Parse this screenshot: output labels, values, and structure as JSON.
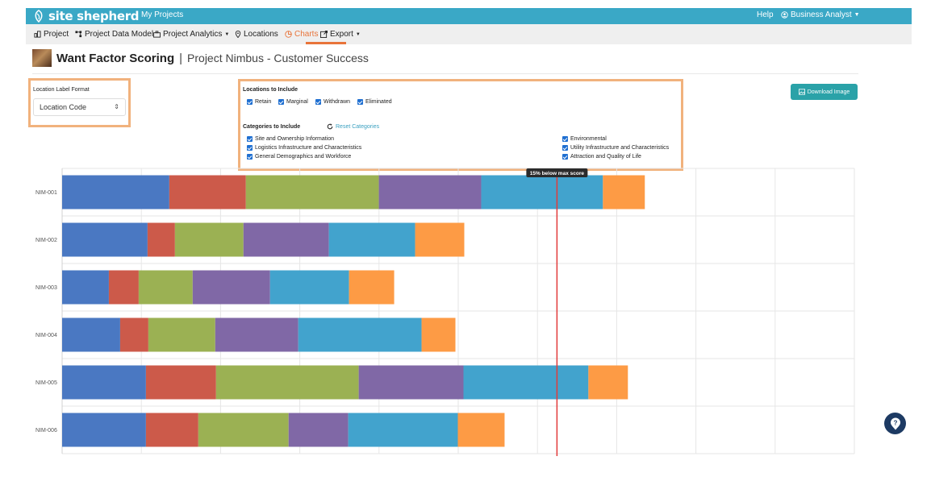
{
  "brand": {
    "name": "site shepherd",
    "color": "#3aa8c6"
  },
  "topbar": {
    "my_projects": "My Projects",
    "help": "Help",
    "user": "Business Analyst"
  },
  "nav": {
    "project": "Project",
    "data_model": "Project Data Model",
    "analytics": "Project Analytics",
    "locations": "Locations",
    "charts": "Charts",
    "export": "Export"
  },
  "page": {
    "title": "Want Factor Scoring",
    "separator": "|",
    "subtitle": "Project Nimbus - Customer Success"
  },
  "label_format": {
    "label": "Location Label Format",
    "value": "Location Code"
  },
  "locations": {
    "heading": "Locations to Include",
    "items": [
      {
        "label": "Retain",
        "checked": true
      },
      {
        "label": "Marginal",
        "checked": true
      },
      {
        "label": "Withdrawn",
        "checked": true
      },
      {
        "label": "Eliminated",
        "checked": true
      }
    ]
  },
  "categories": {
    "heading": "Categories to Include",
    "reset_label": "Reset Categories",
    "items": [
      {
        "label": "Site and Ownership Information",
        "checked": true
      },
      {
        "label": "Logistics Infrastructure and Characteristics",
        "checked": true
      },
      {
        "label": "General Demographics and Workforce",
        "checked": true
      },
      {
        "label": "Environmental",
        "checked": true
      },
      {
        "label": "Utility Infrastructure and Characteristics",
        "checked": true
      },
      {
        "label": "Attraction and Quality of Life",
        "checked": true
      }
    ]
  },
  "download_label": "Download Image",
  "chart_data": {
    "type": "bar",
    "orientation": "horizontal",
    "stacked": true,
    "categories": [
      "NIM-001",
      "NIM-002",
      "NIM-003",
      "NIM-004",
      "NIM-005",
      "NIM-006"
    ],
    "series": [
      {
        "values": [
          133,
          106,
          58,
          72,
          104,
          104
        ],
        "color": "#4a78c2"
      },
      {
        "values": [
          95,
          34,
          37,
          35,
          87,
          65
        ],
        "color": "#cc5a4a"
      },
      {
        "values": [
          165,
          85,
          67,
          83,
          177,
          112
        ],
        "color": "#9bb153"
      },
      {
        "values": [
          127,
          106,
          96,
          103,
          130,
          74
        ],
        "color": "#8068a6"
      },
      {
        "values": [
          151,
          107,
          98,
          153,
          155,
          136
        ],
        "color": "#42a3cd"
      },
      {
        "values": [
          52,
          61,
          56,
          42,
          49,
          58
        ],
        "color": "#fd9b45"
      }
    ],
    "xlim": [
      0,
      983
    ],
    "grid": true,
    "reference_line": {
      "value": 614,
      "label": "15% below max score",
      "color": "#e23a3a"
    }
  }
}
